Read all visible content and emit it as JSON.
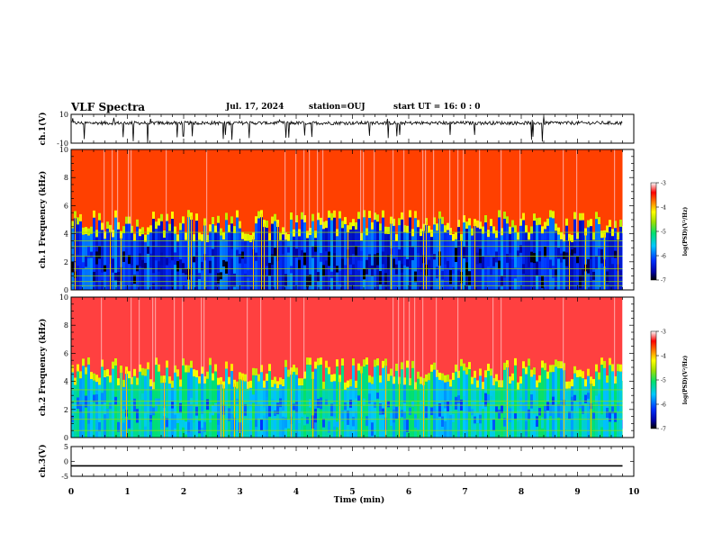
{
  "header": {
    "title": "VLF Spectra",
    "date": "Jul. 17, 2024",
    "station": "station=OUJ",
    "start_ut": "start UT = 16: 0 : 0"
  },
  "chart_data": [
    {
      "type": "line",
      "panel": "ch1-waveform",
      "ylabel": "ch.1(V)",
      "ylim": [
        -10,
        10
      ],
      "yticks": [
        10,
        -10
      ],
      "xlim": [
        0,
        10
      ],
      "baseline": 4,
      "spike_amplitude_range": [
        -10,
        10
      ],
      "color": "#000000"
    },
    {
      "type": "heatmap",
      "panel": "ch1-spectrogram",
      "ylabel": "ch.1 Frequency (kHz)",
      "ylim": [
        0,
        10
      ],
      "yticks": [
        0,
        2,
        4,
        6,
        8,
        10
      ],
      "xlim": [
        0,
        9.8
      ],
      "colorbar": {
        "label": "log(PSD)(V²/Hz)",
        "ticks": [
          -3,
          -4,
          -5,
          -6,
          -7
        ],
        "range": [
          -7,
          -3
        ]
      },
      "cutoff_khz_mean": 4.3,
      "low_band_level": -6.2,
      "high_band_level": -3.6,
      "tone_lines_khz": [
        0.3,
        0.6,
        1.0,
        1.5,
        2.4,
        3.1,
        3.5,
        4.1
      ]
    },
    {
      "type": "heatmap",
      "panel": "ch2-spectrogram",
      "ylabel": "ch.2 Frequency (kHz)",
      "ylim": [
        0,
        10
      ],
      "yticks": [
        0,
        2,
        4,
        6,
        8,
        10
      ],
      "xlim": [
        0,
        9.8
      ],
      "colorbar": {
        "label": "log(PSD)(V²/Hz)",
        "ticks": [
          -3,
          -4,
          -5,
          -6,
          -7
        ],
        "range": [
          -7,
          -3
        ]
      },
      "cutoff_khz_mean": 4.3,
      "low_band_level": -5.4,
      "high_band_level": -3.3,
      "tone_lines_khz": [
        0.5,
        1.3,
        1.8,
        2.3,
        2.6,
        3.4
      ]
    },
    {
      "type": "line",
      "panel": "ch3-waveform",
      "ylabel": "ch.3(V)",
      "ylim": [
        -5,
        5
      ],
      "yticks": [
        5,
        0,
        -5
      ],
      "xlim": [
        0,
        9.8
      ],
      "values_constant": -1.5,
      "color": "#000000"
    }
  ],
  "xaxis": {
    "label": "Time (min)",
    "ticks": [
      "0",
      "1",
      "2",
      "3",
      "4",
      "5",
      "6",
      "7",
      "8",
      "9",
      "10"
    ],
    "range": [
      0,
      10
    ]
  }
}
